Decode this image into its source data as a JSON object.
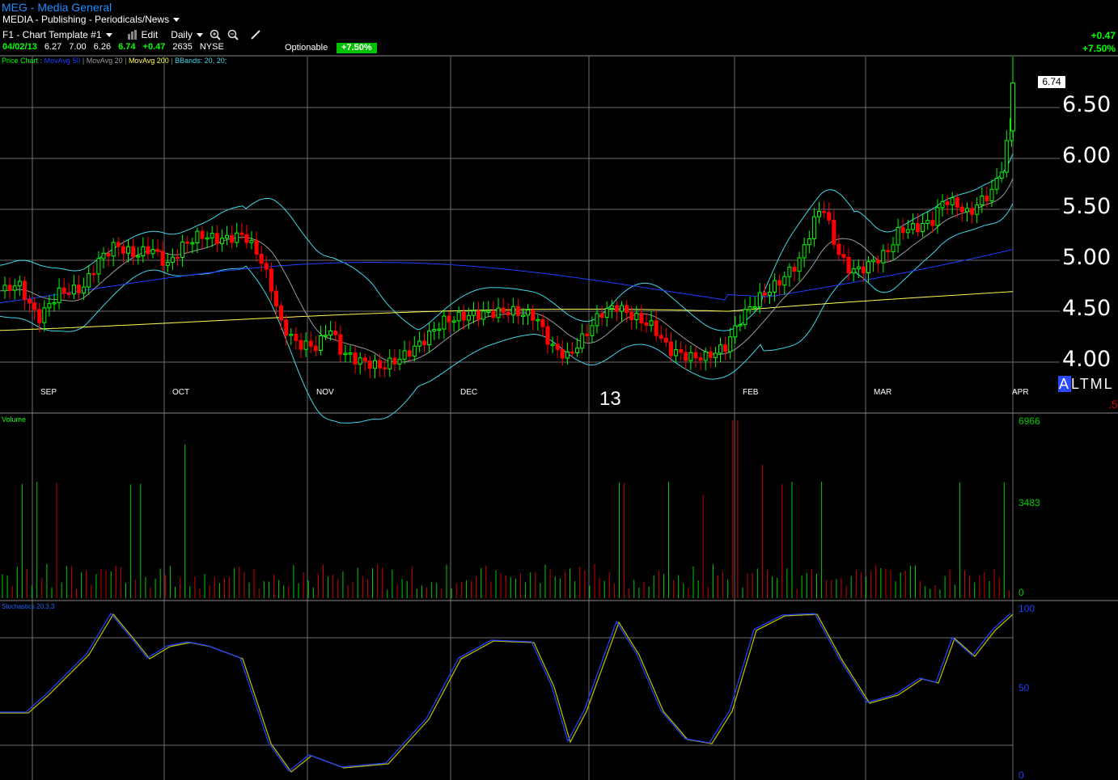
{
  "header": {
    "title": "MEG - Media General",
    "industry": "MEDIA - Publishing - Periodicals/News",
    "template": "F1 - Chart Template #1",
    "edit_label": "Edit",
    "period": "Daily",
    "optionable": "Optionable",
    "opt_badge": "+7.50%",
    "change_top": "+0.47",
    "pct_top": "+7.50%"
  },
  "quote": {
    "date": "04/02/13",
    "open": "6.27",
    "high": "7.00",
    "low": "6.26",
    "last": "6.74",
    "change": "+0.47",
    "volume": "2635",
    "exchange": "NYSE"
  },
  "legend": {
    "price_chart": "Price Chart :",
    "ma50": "MovAvg 50",
    "ma20": "MovAvg 20",
    "ma200": "MovAvg 200",
    "bbands": "BBands: 20, 20;"
  },
  "price_axis": [
    "6.50",
    "6.00",
    "5.50",
    "5.00",
    "4.50",
    "4.00"
  ],
  "last_price_box": "6.74",
  "months": [
    "SEP",
    "OCT",
    "NOV",
    "DEC",
    "FEB",
    "MAR",
    "APR"
  ],
  "year_label": "13",
  "altml": {
    "a": "A",
    "rest": "LTML"
  },
  "red_five": ".5",
  "volume": {
    "label": "Volume",
    "axis": [
      "6966",
      "3483",
      "0"
    ]
  },
  "stochastic": {
    "label": "Stochastics 20,3,3",
    "axis": [
      "100",
      "50",
      "0"
    ]
  },
  "colors": {
    "up": "#00ff00",
    "down": "#ff0000",
    "ma50": "#1f3fff",
    "ma20": "#9a9a9a",
    "ma200": "#ffff55",
    "bbands": "#40d8e8",
    "grid": "#6e6e6e",
    "title": "#1f8fff"
  }
}
